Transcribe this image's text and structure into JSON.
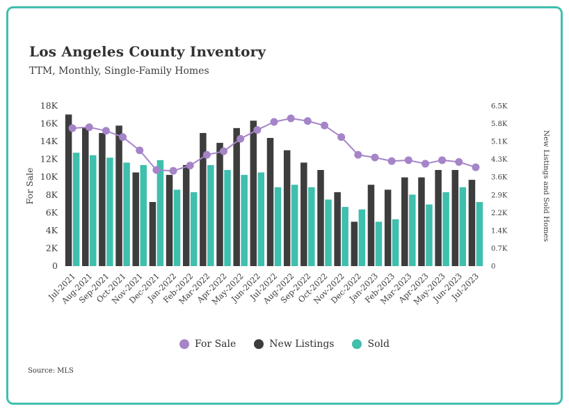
{
  "header": {
    "title": "Los Angeles County Inventory",
    "subtitle": "TTM, Monthly, Single-Family Homes"
  },
  "footer": {
    "source": "Source:  MLS"
  },
  "legend": {
    "items": [
      {
        "label": "For Sale",
        "color": "#A584C8"
      },
      {
        "label": "New Listings",
        "color": "#3D3D3D"
      },
      {
        "label": "Sold",
        "color": "#3FBFAD"
      }
    ]
  },
  "colors": {
    "frame": "#3FBFAD",
    "line": "#A584C8",
    "bar_dark": "#3D3D3D",
    "bar_teal": "#3FBFAD",
    "text": "#3b3b3b"
  },
  "chart_data": {
    "type": "bar",
    "subtype": "combo-bar-line",
    "title": "Los Angeles County Inventory",
    "xlabel": "",
    "grid": false,
    "legend_position": "bottom",
    "categories": [
      "Jul-2021",
      "Aug-2021",
      "Sep-2021",
      "Oct-2021",
      "Nov-2021",
      "Dec-2021",
      "Jan-2022",
      "Feb-2022",
      "Mar-2022",
      "Apr-2022",
      "May-2022",
      "Jun-2022",
      "Jul-2022",
      "Aug-2022",
      "Sep-2022",
      "Oct-2022",
      "Nov-2022",
      "Dec-2022",
      "Jan-2023",
      "Feb-2023",
      "Mar-2023",
      "Apr-2023",
      "May-2023",
      "Jun-2023",
      "Jul-2023"
    ],
    "series": [
      {
        "name": "For Sale",
        "type": "line",
        "axis": "left",
        "color": "#A584C8",
        "values": [
          15500,
          15600,
          15200,
          14500,
          13000,
          10800,
          10700,
          11300,
          12500,
          12900,
          14300,
          15300,
          16200,
          16600,
          16300,
          15800,
          14500,
          12500,
          12200,
          11800,
          11900,
          11500,
          11900,
          11700,
          11100
        ]
      },
      {
        "name": "New Listings",
        "type": "bar",
        "axis": "right",
        "color": "#3D3D3D",
        "values": [
          6150,
          5600,
          5400,
          5700,
          3800,
          2600,
          3700,
          4100,
          5400,
          5000,
          5600,
          5900,
          5200,
          4700,
          4200,
          3900,
          3000,
          1800,
          3300,
          3100,
          3600,
          3600,
          3900,
          3900,
          3500
        ]
      },
      {
        "name": "Sold",
        "type": "bar",
        "axis": "right",
        "color": "#3FBFAD",
        "values": [
          4600,
          4500,
          4400,
          4200,
          4100,
          4300,
          3100,
          3000,
          4100,
          3900,
          3700,
          3800,
          3200,
          3300,
          3200,
          2700,
          2400,
          2300,
          1800,
          1900,
          2900,
          2500,
          3000,
          3200,
          2600
        ]
      }
    ],
    "left_axis": {
      "label": "For Sale",
      "min": 0,
      "max": 18000,
      "ticks": [
        "0",
        "2K",
        "4K",
        "6K",
        "8K",
        "10K",
        "12K",
        "14K",
        "16K",
        "18K"
      ]
    },
    "right_axis": {
      "label": "New Listings and Sold Homes",
      "min": 0,
      "max": 6500,
      "ticks": [
        "0",
        "0.7K",
        "1.4K",
        "2.2K",
        "2.9K",
        "3.6K",
        "4.3K",
        "5.1K",
        "5.8K",
        "6.5K"
      ]
    }
  }
}
